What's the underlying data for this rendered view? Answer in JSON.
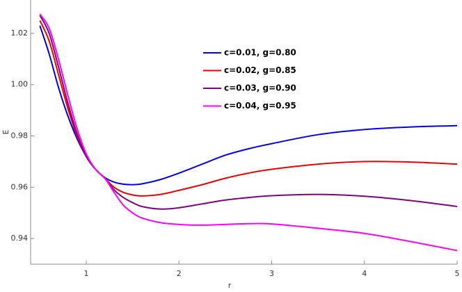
{
  "chart_data": {
    "type": "line",
    "xlabel": "r",
    "ylabel": "E",
    "x": [
      0.5,
      0.6,
      0.7,
      0.8,
      0.9,
      1.0,
      1.1,
      1.2,
      1.3,
      1.4,
      1.5,
      1.6,
      1.8,
      2.0,
      2.25,
      2.5,
      2.75,
      3.0,
      3.5,
      4.0,
      4.5,
      5.0
    ],
    "series": [
      {
        "name": "c=0.01, g=0.80",
        "color": "#0000ee",
        "values": [
          1.023,
          1.012,
          0.999,
          0.988,
          0.979,
          0.972,
          0.967,
          0.9638,
          0.962,
          0.9612,
          0.961,
          0.9613,
          0.963,
          0.9655,
          0.969,
          0.9725,
          0.975,
          0.977,
          0.9805,
          0.9825,
          0.9835,
          0.984
        ]
      },
      {
        "name": "c=0.02, g=0.85",
        "color": "#ee0000",
        "values": [
          1.025,
          1.017,
          1.004,
          0.991,
          0.98,
          0.972,
          0.967,
          0.9635,
          0.96,
          0.958,
          0.957,
          0.9566,
          0.9572,
          0.9588,
          0.961,
          0.9635,
          0.9655,
          0.967,
          0.969,
          0.97,
          0.9698,
          0.969
        ]
      },
      {
        "name": "c=0.03, g=0.90",
        "color": "#800080",
        "values": [
          1.027,
          1.02,
          1.007,
          0.993,
          0.981,
          0.972,
          0.967,
          0.9635,
          0.959,
          0.956,
          0.954,
          0.9525,
          0.9515,
          0.952,
          0.9535,
          0.955,
          0.956,
          0.9567,
          0.9572,
          0.9565,
          0.9548,
          0.9525
        ]
      },
      {
        "name": "c=0.04, g=0.95",
        "color": "#ff00ff",
        "values": [
          1.0275,
          1.022,
          1.01,
          0.996,
          0.983,
          0.973,
          0.967,
          0.9635,
          0.958,
          0.953,
          0.95,
          0.948,
          0.9462,
          0.9455,
          0.9452,
          0.9455,
          0.9458,
          0.9457,
          0.944,
          0.942,
          0.9388,
          0.9353
        ]
      }
    ],
    "xlim": [
      0.4,
      5
    ],
    "ylim": [
      0.93,
      1.033
    ],
    "xticks": [
      1,
      2,
      3,
      4,
      5
    ],
    "yticks": [
      0.94,
      0.96,
      0.98,
      {
        "value": 1,
        "label": "1.00"
      },
      1.02
    ]
  }
}
